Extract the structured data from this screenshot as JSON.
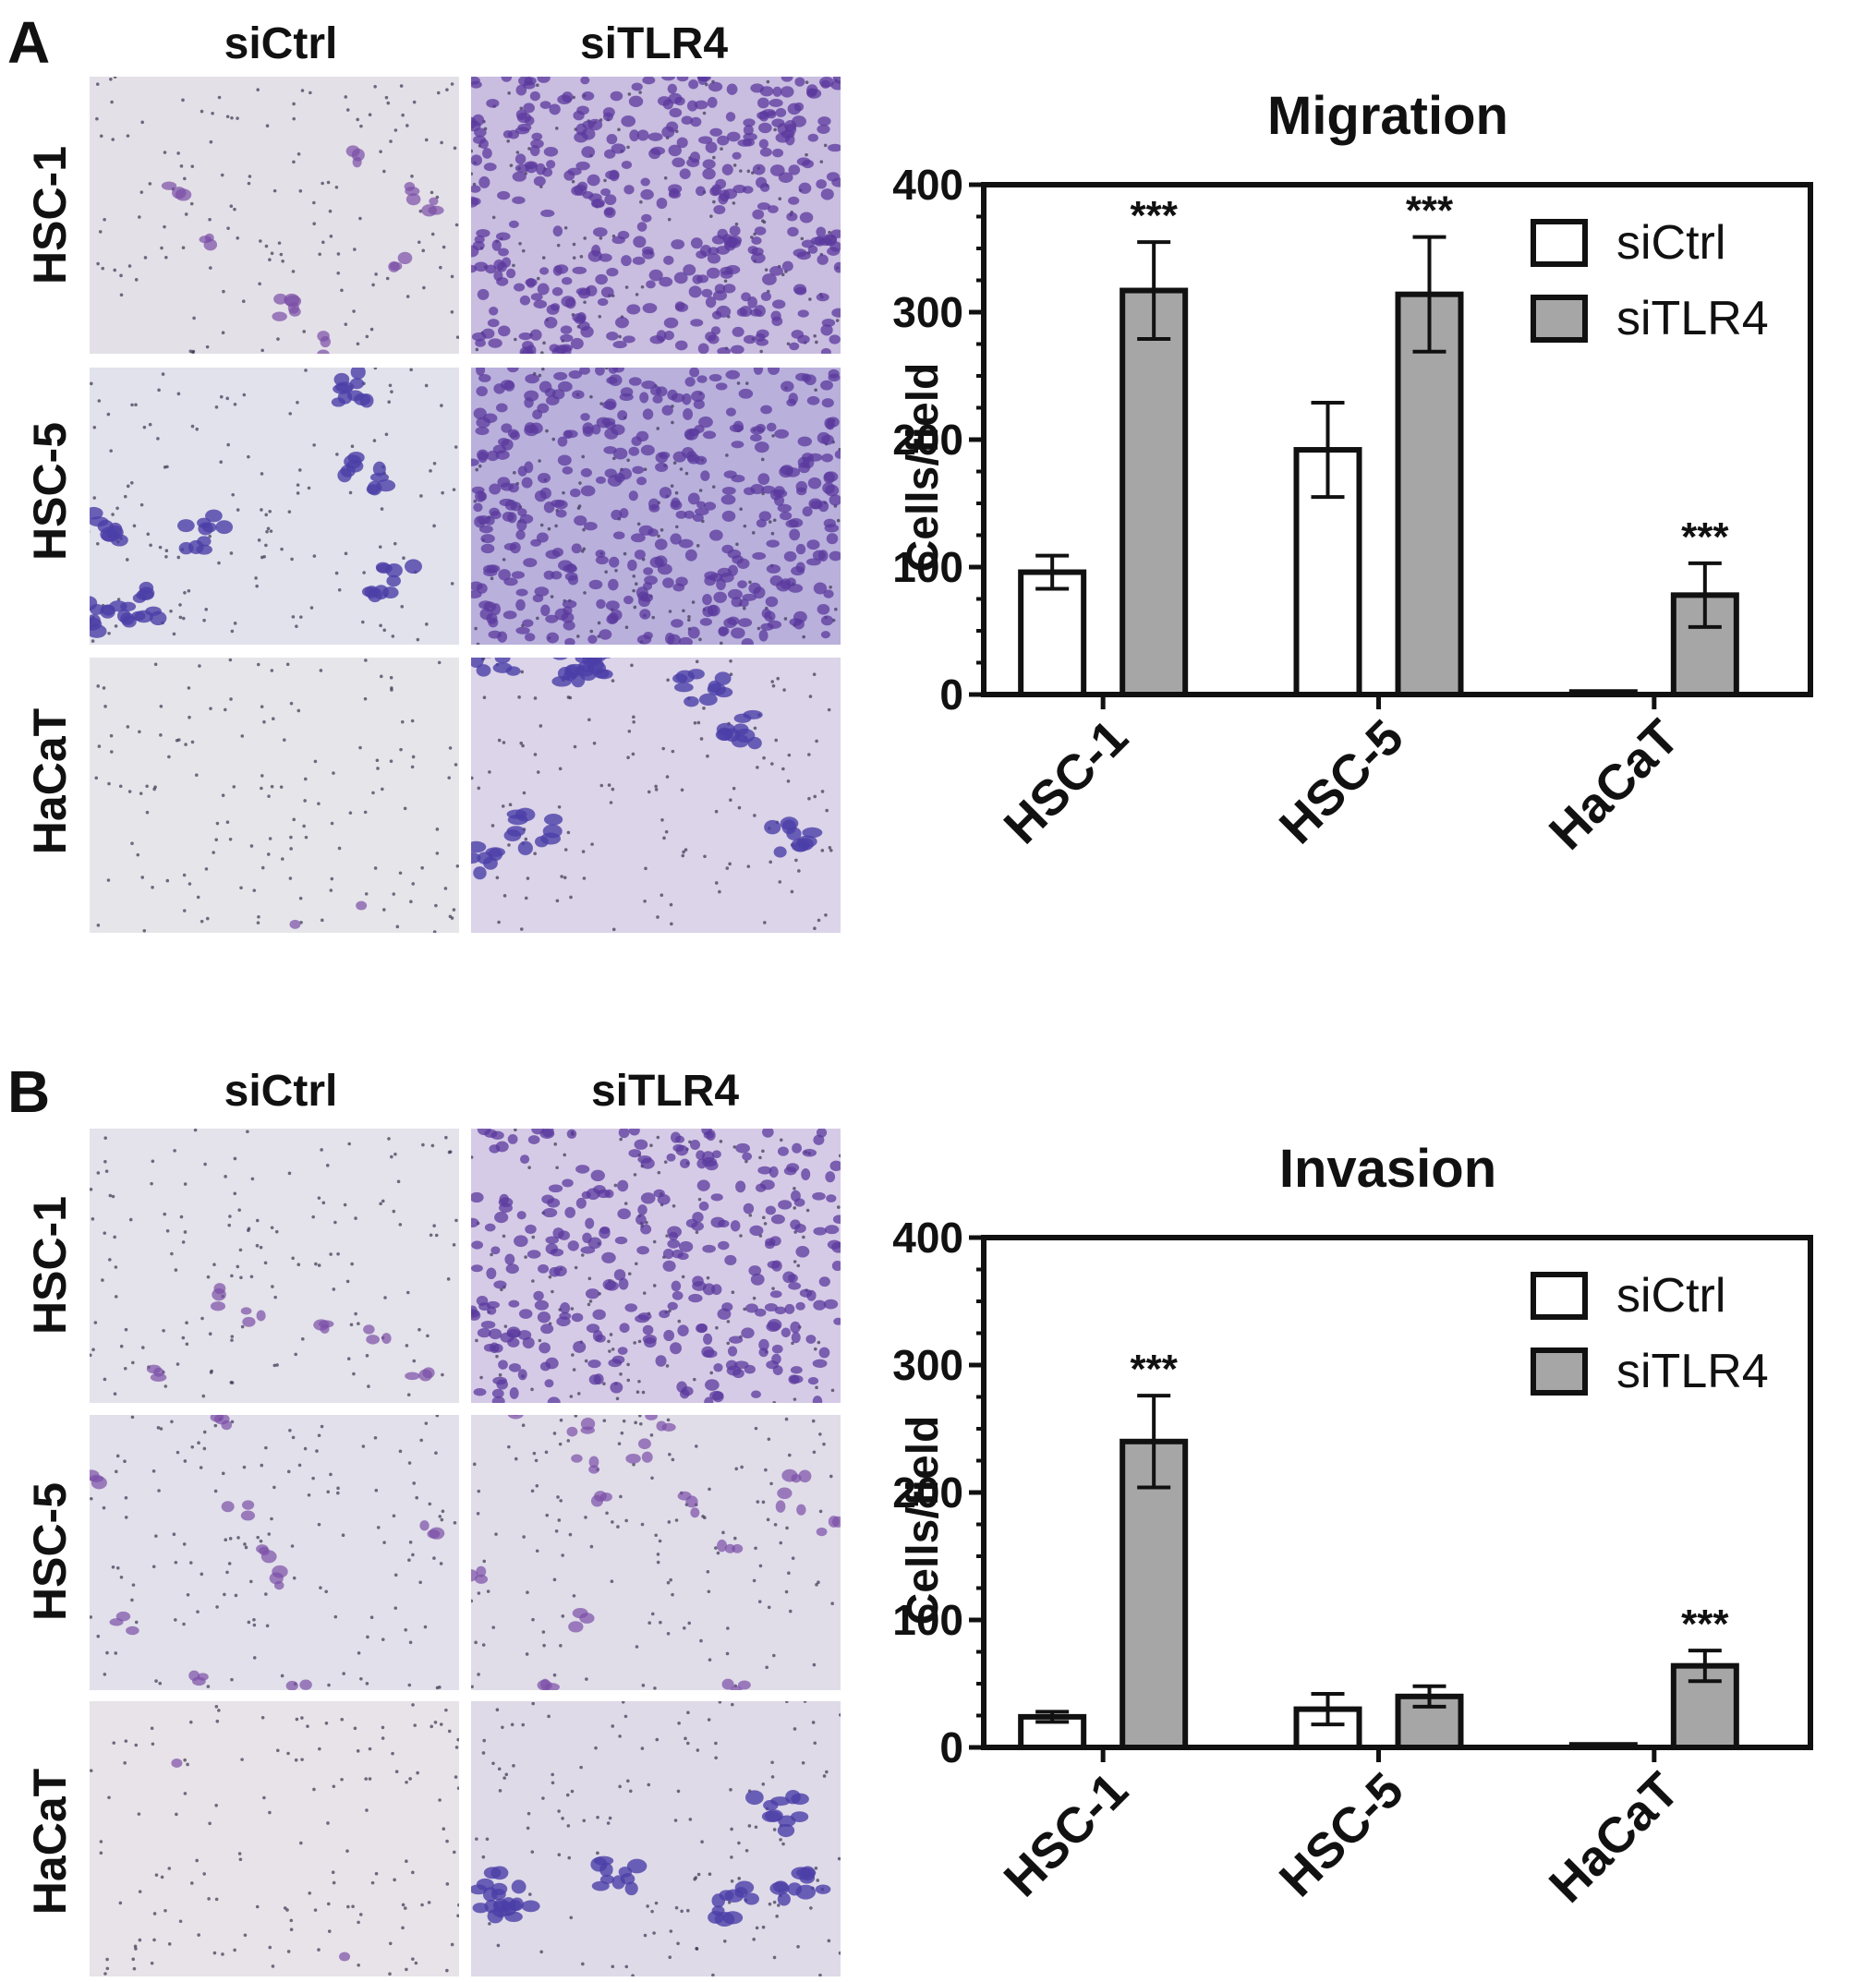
{
  "colors": {
    "siCtrl": "#ffffff",
    "siTLR4": "#a6a6a6",
    "axis": "#111111",
    "stain": "#5a3fa8",
    "bg": "#dcdcdc"
  },
  "panelA": {
    "letter": "A",
    "col_headers": [
      "siCtrl",
      "siTLR4"
    ],
    "row_headers": [
      "HSC-1",
      "HSC-5",
      "HaCaT"
    ],
    "micrographs": [
      {
        "row": "HSC-1",
        "col": "siCtrl",
        "density": 0.15,
        "tint": "#e4e0e8",
        "style": "sparse"
      },
      {
        "row": "HSC-1",
        "col": "siTLR4",
        "density": 0.95,
        "tint": "#c9bde0",
        "style": "dense"
      },
      {
        "row": "HSC-5",
        "col": "siCtrl",
        "density": 0.35,
        "tint": "#e2e2ec",
        "style": "clusters"
      },
      {
        "row": "HSC-5",
        "col": "siTLR4",
        "density": 0.95,
        "tint": "#b9b0dc",
        "style": "dense"
      },
      {
        "row": "HaCaT",
        "col": "siCtrl",
        "density": 0.02,
        "tint": "#e6e6ea",
        "style": "empty"
      },
      {
        "row": "HaCaT",
        "col": "siTLR4",
        "density": 0.4,
        "tint": "#dcd4e8",
        "style": "clusters"
      }
    ]
  },
  "panelB": {
    "letter": "B",
    "col_headers": [
      "siCtrl",
      "siTLR4"
    ],
    "row_headers": [
      "HSC-1",
      "HSC-5",
      "HaCaT"
    ],
    "micrographs": [
      {
        "row": "HSC-1",
        "col": "siCtrl",
        "density": 0.1,
        "tint": "#e4e2ea",
        "style": "sparse"
      },
      {
        "row": "HSC-1",
        "col": "siTLR4",
        "density": 0.7,
        "tint": "#d6cbe6",
        "style": "dense"
      },
      {
        "row": "HSC-5",
        "col": "siCtrl",
        "density": 0.15,
        "tint": "#e2e0ea",
        "style": "sparse"
      },
      {
        "row": "HSC-5",
        "col": "siTLR4",
        "density": 0.25,
        "tint": "#e0dde9",
        "style": "sparse"
      },
      {
        "row": "HaCaT",
        "col": "siCtrl",
        "density": 0.02,
        "tint": "#e8e3e8",
        "style": "empty"
      },
      {
        "row": "HaCaT",
        "col": "siTLR4",
        "density": 0.3,
        "tint": "#dedae8",
        "style": "clusters"
      }
    ]
  },
  "chart_data": [
    {
      "type": "bar",
      "title": "Migration",
      "ylabel": "Cells/field",
      "xlabel": "",
      "categories": [
        "HSC-1",
        "HSC-5",
        "HaCaT"
      ],
      "ylim": [
        0,
        400
      ],
      "yticks": [
        "0",
        "100",
        "200",
        "300",
        "400"
      ],
      "series": [
        {
          "name": "siCtrl",
          "values": [
            96,
            192,
            2
          ],
          "errors": [
            13,
            37,
            1
          ]
        },
        {
          "name": "siTLR4",
          "values": [
            317,
            314,
            78
          ],
          "errors": [
            38,
            45,
            25
          ]
        }
      ],
      "significance": [
        "***",
        "***",
        "***"
      ],
      "significance_series": "siTLR4",
      "legend": "top-right",
      "grid": false
    },
    {
      "type": "bar",
      "title": "Invasion",
      "ylabel": "Cells/field",
      "xlabel": "",
      "categories": [
        "HSC-1",
        "HSC-5",
        "HaCaT"
      ],
      "ylim": [
        0,
        400
      ],
      "yticks": [
        "0",
        "100",
        "200",
        "300",
        "400"
      ],
      "series": [
        {
          "name": "siCtrl",
          "values": [
            24,
            30,
            2
          ],
          "errors": [
            4,
            12,
            1
          ]
        },
        {
          "name": "siTLR4",
          "values": [
            240,
            40,
            64
          ],
          "errors": [
            36,
            8,
            12
          ]
        }
      ],
      "significance": [
        "***",
        "",
        "***"
      ],
      "significance_series": "siTLR4",
      "legend": "top-right",
      "grid": false
    }
  ]
}
